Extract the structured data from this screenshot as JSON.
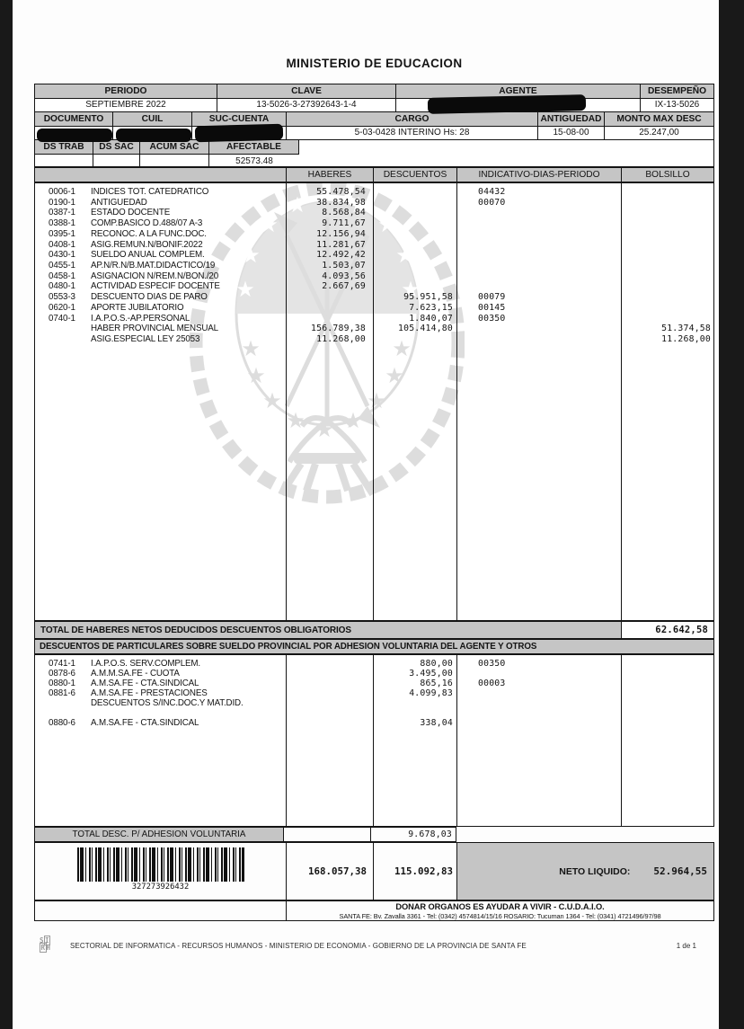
{
  "page": {
    "title": "MINISTERIO DE EDUCACION",
    "page_indicator": "1 de 1",
    "footer_text": "SECTORIAL DE INFORMATICA - RECURSOS HUMANOS - MINISTERIO DE ECONOMIA - GOBIERNO DE LA PROVINCIA DE SANTA FE",
    "logo_top": "S",
    "logo_top_box": "I",
    "logo_bottom_box": "R",
    "logo_bottom": "H"
  },
  "header": {
    "row1": {
      "labels": [
        "PERIODO",
        "CLAVE",
        "AGENTE",
        "DESEMPEÑO"
      ],
      "periodo": "SEPTIEMBRE 2022",
      "clave": "13-5026-3-27392643-1-4",
      "desempeno": "IX-13-5026"
    },
    "row2": {
      "labels": [
        "DOCUMENTO",
        "CUIL",
        "SUC-CUENTA",
        "CARGO",
        "ANTIGUEDAD",
        "MONTO MAX DESC"
      ],
      "cargo": "5-03-0428 INTERINO   Hs: 28",
      "antiguedad": "15-08-00",
      "monto_max_desc": "25.247,00"
    },
    "row3": {
      "labels": [
        "DS TRAB",
        "DS SAC",
        "ACUM SAC",
        "AFECTABLE"
      ],
      "afectable": "52573.48"
    }
  },
  "main_table": {
    "columns": [
      "HABERES",
      "DESCUENTOS",
      "INDICATIVO-DIAS-PERIODO",
      "BOLSILLO"
    ],
    "rows": [
      {
        "code": "0006-1",
        "desc": "INDICES TOT. CATEDRATICO",
        "haberes": "55.478,54",
        "indicativo": "04432"
      },
      {
        "code": "0190-1",
        "desc": "ANTIGUEDAD",
        "haberes": "38.834,98",
        "indicativo": "00070"
      },
      {
        "code": "0387-1",
        "desc": "ESTADO DOCENTE",
        "haberes": "8.568,84"
      },
      {
        "code": "0388-1",
        "desc": "COMP.BASICO D.488/07 A-3",
        "haberes": "9.711,67"
      },
      {
        "code": "0395-1",
        "desc": "RECONOC. A LA FUNC.DOC.",
        "haberes": "12.156,94"
      },
      {
        "code": "0408-1",
        "desc": "ASIG.REMUN.N/BONIF.2022",
        "haberes": "11.281,67"
      },
      {
        "code": "0430-1",
        "desc": "SUELDO ANUAL COMPLEM.",
        "haberes": "12.492,42"
      },
      {
        "code": "0455-1",
        "desc": "AP.N/R.N/B.MAT.DIDACTICO/19",
        "haberes": "1.503,07"
      },
      {
        "code": "0458-1",
        "desc": "ASIGNACION N/REM.N/BON./20",
        "haberes": "4.093,56"
      },
      {
        "code": "0480-1",
        "desc": "ACTIVIDAD ESPECIF DOCENTE",
        "haberes": "2.667,69"
      },
      {
        "code": "0553-3",
        "desc": "DESCUENTO DIAS DE PARO",
        "descuentos": "95.951,58",
        "indicativo": "00079"
      },
      {
        "code": "0620-1",
        "desc": "APORTE JUBILATORIO",
        "descuentos": "7.623,15",
        "indicativo": "00145"
      },
      {
        "code": "0740-1",
        "desc": "I.A.P.O.S.-AP.PERSONAL",
        "descuentos": "1.840,07",
        "indicativo": "00350"
      },
      {
        "code": "",
        "desc": "HABER PROVINCIAL MENSUAL",
        "haberes": "156.789,38",
        "descuentos": "105.414,80",
        "bolsillo": "51.374,58"
      },
      {
        "code": "",
        "desc": "ASIG.ESPECIAL LEY 25053",
        "haberes": "11.268,00",
        "bolsillo": "11.268,00"
      }
    ],
    "total_label": "TOTAL DE HABERES NETOS DEDUCIDOS DESCUENTOS OBLIGATORIOS",
    "total_value": "62.642,58"
  },
  "voluntary_section": {
    "header": "DESCUENTOS DE PARTICULARES SOBRE SUELDO PROVINCIAL POR ADHESION VOLUNTARIA DEL AGENTE Y OTROS",
    "rows": [
      {
        "code": "0741-1",
        "desc": "I.A.P.O.S. SERV.COMPLEM.",
        "descuentos": "880,00",
        "indicativo": "00350"
      },
      {
        "code": "0878-6",
        "desc": "A.M.M.SA.FE - CUOTA",
        "descuentos": "3.495,00"
      },
      {
        "code": "0880-1",
        "desc": "A.M.SA.FE - CTA.SINDICAL",
        "descuentos": "865,16",
        "indicativo": "00003"
      },
      {
        "code": "0881-6",
        "desc": "A.M.SA.FE - PRESTACIONES",
        "descuentos": "4.099,83"
      },
      {
        "code": "",
        "desc": "DESCUENTOS S/INC.DOC.Y MAT.DID."
      },
      {
        "code": "",
        "desc": ""
      },
      {
        "code": "0880-6",
        "desc": "A.M.SA.FE - CTA.SINDICAL",
        "descuentos": "338,04"
      }
    ],
    "total_label": "TOTAL DESC. P/ ADHESION VOLUNTARIA",
    "total_value": "9.678,03"
  },
  "summary": {
    "barcode_number": "327273926432",
    "total_haberes": "168.057,38",
    "total_descuentos": "115.092,83",
    "neto_label": "NETO LIQUIDO:",
    "neto_value": "52.964,55",
    "donar_line": "DONAR ORGANOS ES AYUDAR A VIVIR - C.U.D.A.I.O.",
    "contact_line": "SANTA FE: Bv. Zavalla 3361 - Tel: (0342) 4574814/15/16     ROSARIO: Tucuman 1364 - Tel: (0341) 4721496/97/98"
  }
}
